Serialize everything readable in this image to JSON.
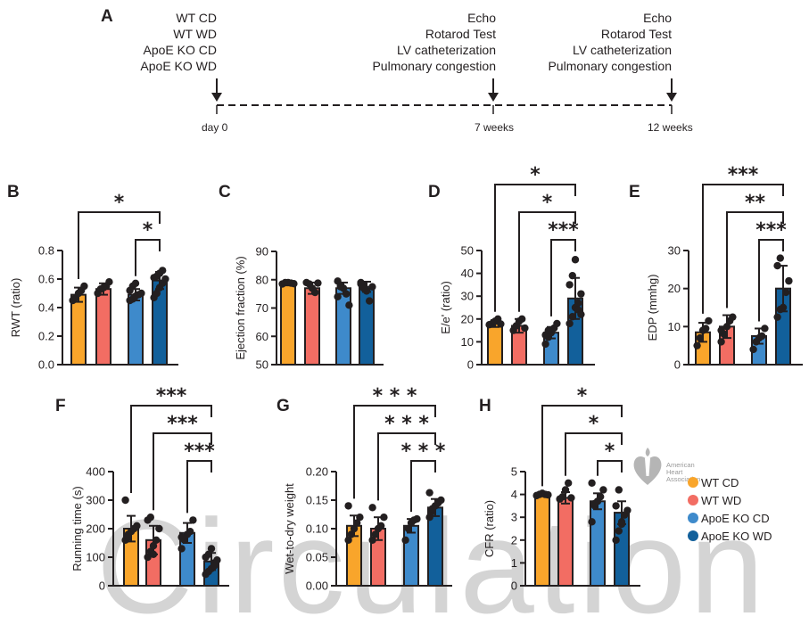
{
  "panel_labels": {
    "A": "A",
    "B": "B",
    "C": "C",
    "D": "D",
    "E": "E",
    "F": "F",
    "G": "G",
    "H": "H"
  },
  "timeline": {
    "groups_day0": [
      "WT CD",
      "WT WD",
      "ApoE KO CD",
      "ApoE KO WD"
    ],
    "tests_7w": [
      "Echo",
      "Rotarod Test",
      "LV catheterization",
      "Pulmonary congestion"
    ],
    "tests_12w": [
      "Echo",
      "Rotarod Test",
      "LV catheterization",
      "Pulmonary congestion"
    ],
    "timepoints": [
      "day 0",
      "7 weeks",
      "12 weeks"
    ]
  },
  "legend": [
    {
      "label": "WT CD",
      "color": "#F9A52B"
    },
    {
      "label": "WT WD",
      "color": "#F26D63"
    },
    {
      "label": "ApoE KO CD",
      "color": "#3E8ACB"
    },
    {
      "label": "ApoE KO WD",
      "color": "#12609B"
    }
  ],
  "watermark": "Circulation",
  "logo_text": "American\nHeart\nAssociation",
  "chart_data": [
    {
      "panel": "B",
      "type": "bar",
      "ylabel": "RWT (ratio)",
      "ylim": [
        0,
        0.8
      ],
      "ticks": [
        0,
        0.2,
        0.4,
        0.6,
        0.8
      ],
      "tick_labels": [
        "0.0",
        "0.2",
        "0.4",
        "0.6",
        "0.8"
      ],
      "categories": [
        "WT CD",
        "WT WD",
        "ApoE KO CD",
        "ApoE KO WD"
      ],
      "values": [
        0.49,
        0.53,
        0.49,
        0.59
      ],
      "sd": [
        0.05,
        0.04,
        0.04,
        0.06
      ],
      "points": [
        [
          0.45,
          0.47,
          0.5,
          0.52,
          0.55
        ],
        [
          0.5,
          0.53,
          0.54,
          0.55,
          0.58
        ],
        [
          0.45,
          0.46,
          0.48,
          0.49,
          0.5,
          0.52,
          0.55,
          0.57
        ],
        [
          0.47,
          0.5,
          0.54,
          0.57,
          0.6,
          0.61,
          0.62,
          0.64,
          0.66
        ]
      ],
      "significance": [
        {
          "from": 0,
          "to": 3,
          "label": "*"
        },
        {
          "from": 2,
          "to": 3,
          "label": "*"
        }
      ]
    },
    {
      "panel": "C",
      "type": "bar",
      "ylabel": "Ejection fraction (%)",
      "ylim": [
        50,
        90
      ],
      "ticks": [
        50,
        60,
        70,
        80,
        90
      ],
      "tick_labels": [
        "50",
        "60",
        "70",
        "80",
        "90"
      ],
      "categories": [
        "WT CD",
        "WT WD",
        "ApoE KO CD",
        "ApoE KO WD"
      ],
      "values": [
        78.5,
        77,
        77,
        77.5
      ],
      "sd": [
        0.5,
        2,
        2,
        1.8
      ],
      "points": [
        [
          78.5,
          79,
          79,
          78.8,
          78.6
        ],
        [
          79,
          78.5,
          77,
          75.5,
          78.8
        ],
        [
          79.5,
          78,
          77,
          75,
          71,
          74,
          77.5
        ],
        [
          79,
          78,
          76,
          72.5,
          77.5,
          78.5,
          77
        ]
      ],
      "significance": []
    },
    {
      "panel": "D",
      "type": "bar",
      "ylabel": "E/e' (ratio)",
      "ylim": [
        0,
        50
      ],
      "ticks": [
        0,
        10,
        20,
        30,
        40,
        50
      ],
      "tick_labels": [
        "0",
        "10",
        "20",
        "30",
        "40",
        "50"
      ],
      "categories": [
        "WT CD",
        "WT WD",
        "ApoE KO CD",
        "ApoE KO WD"
      ],
      "values": [
        18,
        17,
        14,
        29
      ],
      "sd": [
        1.5,
        3,
        2.5,
        9
      ],
      "points": [
        [
          17.5,
          18,
          19,
          20,
          17.8
        ],
        [
          15,
          17,
          19,
          20,
          16
        ],
        [
          9,
          12,
          14,
          16,
          18,
          13,
          15
        ],
        [
          18,
          21,
          25,
          27,
          31,
          35,
          39,
          46,
          24,
          22
        ]
      ],
      "significance": [
        {
          "from": 0,
          "to": 3,
          "label": "*"
        },
        {
          "from": 1,
          "to": 3,
          "label": "*"
        },
        {
          "from": 2,
          "to": 3,
          "label": "***"
        }
      ]
    },
    {
      "panel": "E",
      "type": "bar",
      "ylabel": "EDP (mmhg)",
      "ylim": [
        0,
        30
      ],
      "ticks": [
        0,
        10,
        20,
        30
      ],
      "tick_labels": [
        "0",
        "10",
        "20",
        "30"
      ],
      "categories": [
        "WT CD",
        "WT WD",
        "ApoE KO CD",
        "ApoE KO WD"
      ],
      "values": [
        8.5,
        10,
        7.5,
        20
      ],
      "sd": [
        2.5,
        3,
        2,
        6
      ],
      "points": [
        [
          5,
          7,
          9,
          9.5,
          11.5
        ],
        [
          6,
          8,
          10,
          11.5,
          12.5,
          9
        ],
        [
          4,
          6,
          7,
          7.5,
          9.5
        ],
        [
          12.5,
          14.5,
          15,
          19,
          22,
          26,
          28
        ]
      ],
      "significance": [
        {
          "from": 0,
          "to": 3,
          "label": "***"
        },
        {
          "from": 1,
          "to": 3,
          "label": "**"
        },
        {
          "from": 2,
          "to": 3,
          "label": "***"
        }
      ]
    },
    {
      "panel": "F",
      "type": "bar",
      "ylabel": "Running time (s)",
      "ylim": [
        0,
        400
      ],
      "ticks": [
        0,
        100,
        200,
        300,
        400
      ],
      "tick_labels": [
        "0",
        "100",
        "200",
        "300",
        "400"
      ],
      "categories": [
        "WT CD",
        "WT WD",
        "ApoE KO CD",
        "ApoE KO WD"
      ],
      "values": [
        200,
        160,
        185,
        85
      ],
      "sd": [
        45,
        50,
        35,
        30
      ],
      "points": [
        [
          160,
          180,
          190,
          200,
          210,
          300,
          170
        ],
        [
          100,
          120,
          140,
          160,
          200,
          230,
          240,
          110
        ],
        [
          130,
          160,
          180,
          190,
          230,
          170
        ],
        [
          40,
          50,
          60,
          80,
          90,
          100,
          110,
          130,
          70
        ]
      ],
      "significance": [
        {
          "from": 0,
          "to": 3,
          "label": "***"
        },
        {
          "from": 1,
          "to": 3,
          "label": "***"
        },
        {
          "from": 2,
          "to": 3,
          "label": "***"
        }
      ]
    },
    {
      "panel": "G",
      "type": "bar",
      "ylabel": "Wet-to-dry weight",
      "ylim": [
        0,
        0.2
      ],
      "ticks": [
        0,
        0.05,
        0.1,
        0.15,
        0.2
      ],
      "tick_labels": [
        "0.00",
        "0.05",
        "0.10",
        "0.15",
        "0.20"
      ],
      "categories": [
        "WT CD",
        "WT WD",
        "ApoE KO CD",
        "ApoE KO WD"
      ],
      "values": [
        0.105,
        0.1,
        0.105,
        0.137
      ],
      "sd": [
        0.018,
        0.02,
        0.012,
        0.015
      ],
      "points": [
        [
          0.08,
          0.09,
          0.1,
          0.11,
          0.12,
          0.14
        ],
        [
          0.08,
          0.09,
          0.1,
          0.105,
          0.12,
          0.137
        ],
        [
          0.08,
          0.1,
          0.11,
          0.115,
          0.117
        ],
        [
          0.12,
          0.13,
          0.14,
          0.145,
          0.15,
          0.163,
          0.135
        ]
      ],
      "significance": [
        {
          "from": 0,
          "to": 3,
          "label": "* * *"
        },
        {
          "from": 1,
          "to": 3,
          "label": "* * *"
        },
        {
          "from": 2,
          "to": 3,
          "label": "* * *"
        }
      ]
    },
    {
      "panel": "H",
      "type": "bar",
      "ylabel": "CFR (ratio)",
      "ylim": [
        0,
        5
      ],
      "ticks": [
        0,
        1,
        2,
        3,
        4,
        5
      ],
      "tick_labels": [
        "0",
        "1",
        "2",
        "3",
        "4",
        "5"
      ],
      "categories": [
        "WT CD",
        "WT WD",
        "ApoE KO CD",
        "ApoE KO WD"
      ],
      "values": [
        4.0,
        3.85,
        3.7,
        3.2
      ],
      "sd": [
        0.05,
        0.25,
        0.35,
        0.5
      ],
      "points": [
        [
          3.95,
          4.0,
          4.05,
          4.0,
          3.98
        ],
        [
          3.8,
          3.9,
          4.2,
          4.5,
          3.85
        ],
        [
          2.8,
          3.5,
          3.7,
          3.9,
          4.2,
          4.5,
          3.6
        ],
        [
          2.0,
          2.4,
          2.8,
          3.1,
          3.3,
          3.5,
          4.2,
          2.7
        ]
      ],
      "significance": [
        {
          "from": 0,
          "to": 3,
          "label": "*"
        },
        {
          "from": 1,
          "to": 3,
          "label": "*"
        },
        {
          "from": 2,
          "to": 3,
          "label": "*"
        }
      ]
    }
  ]
}
